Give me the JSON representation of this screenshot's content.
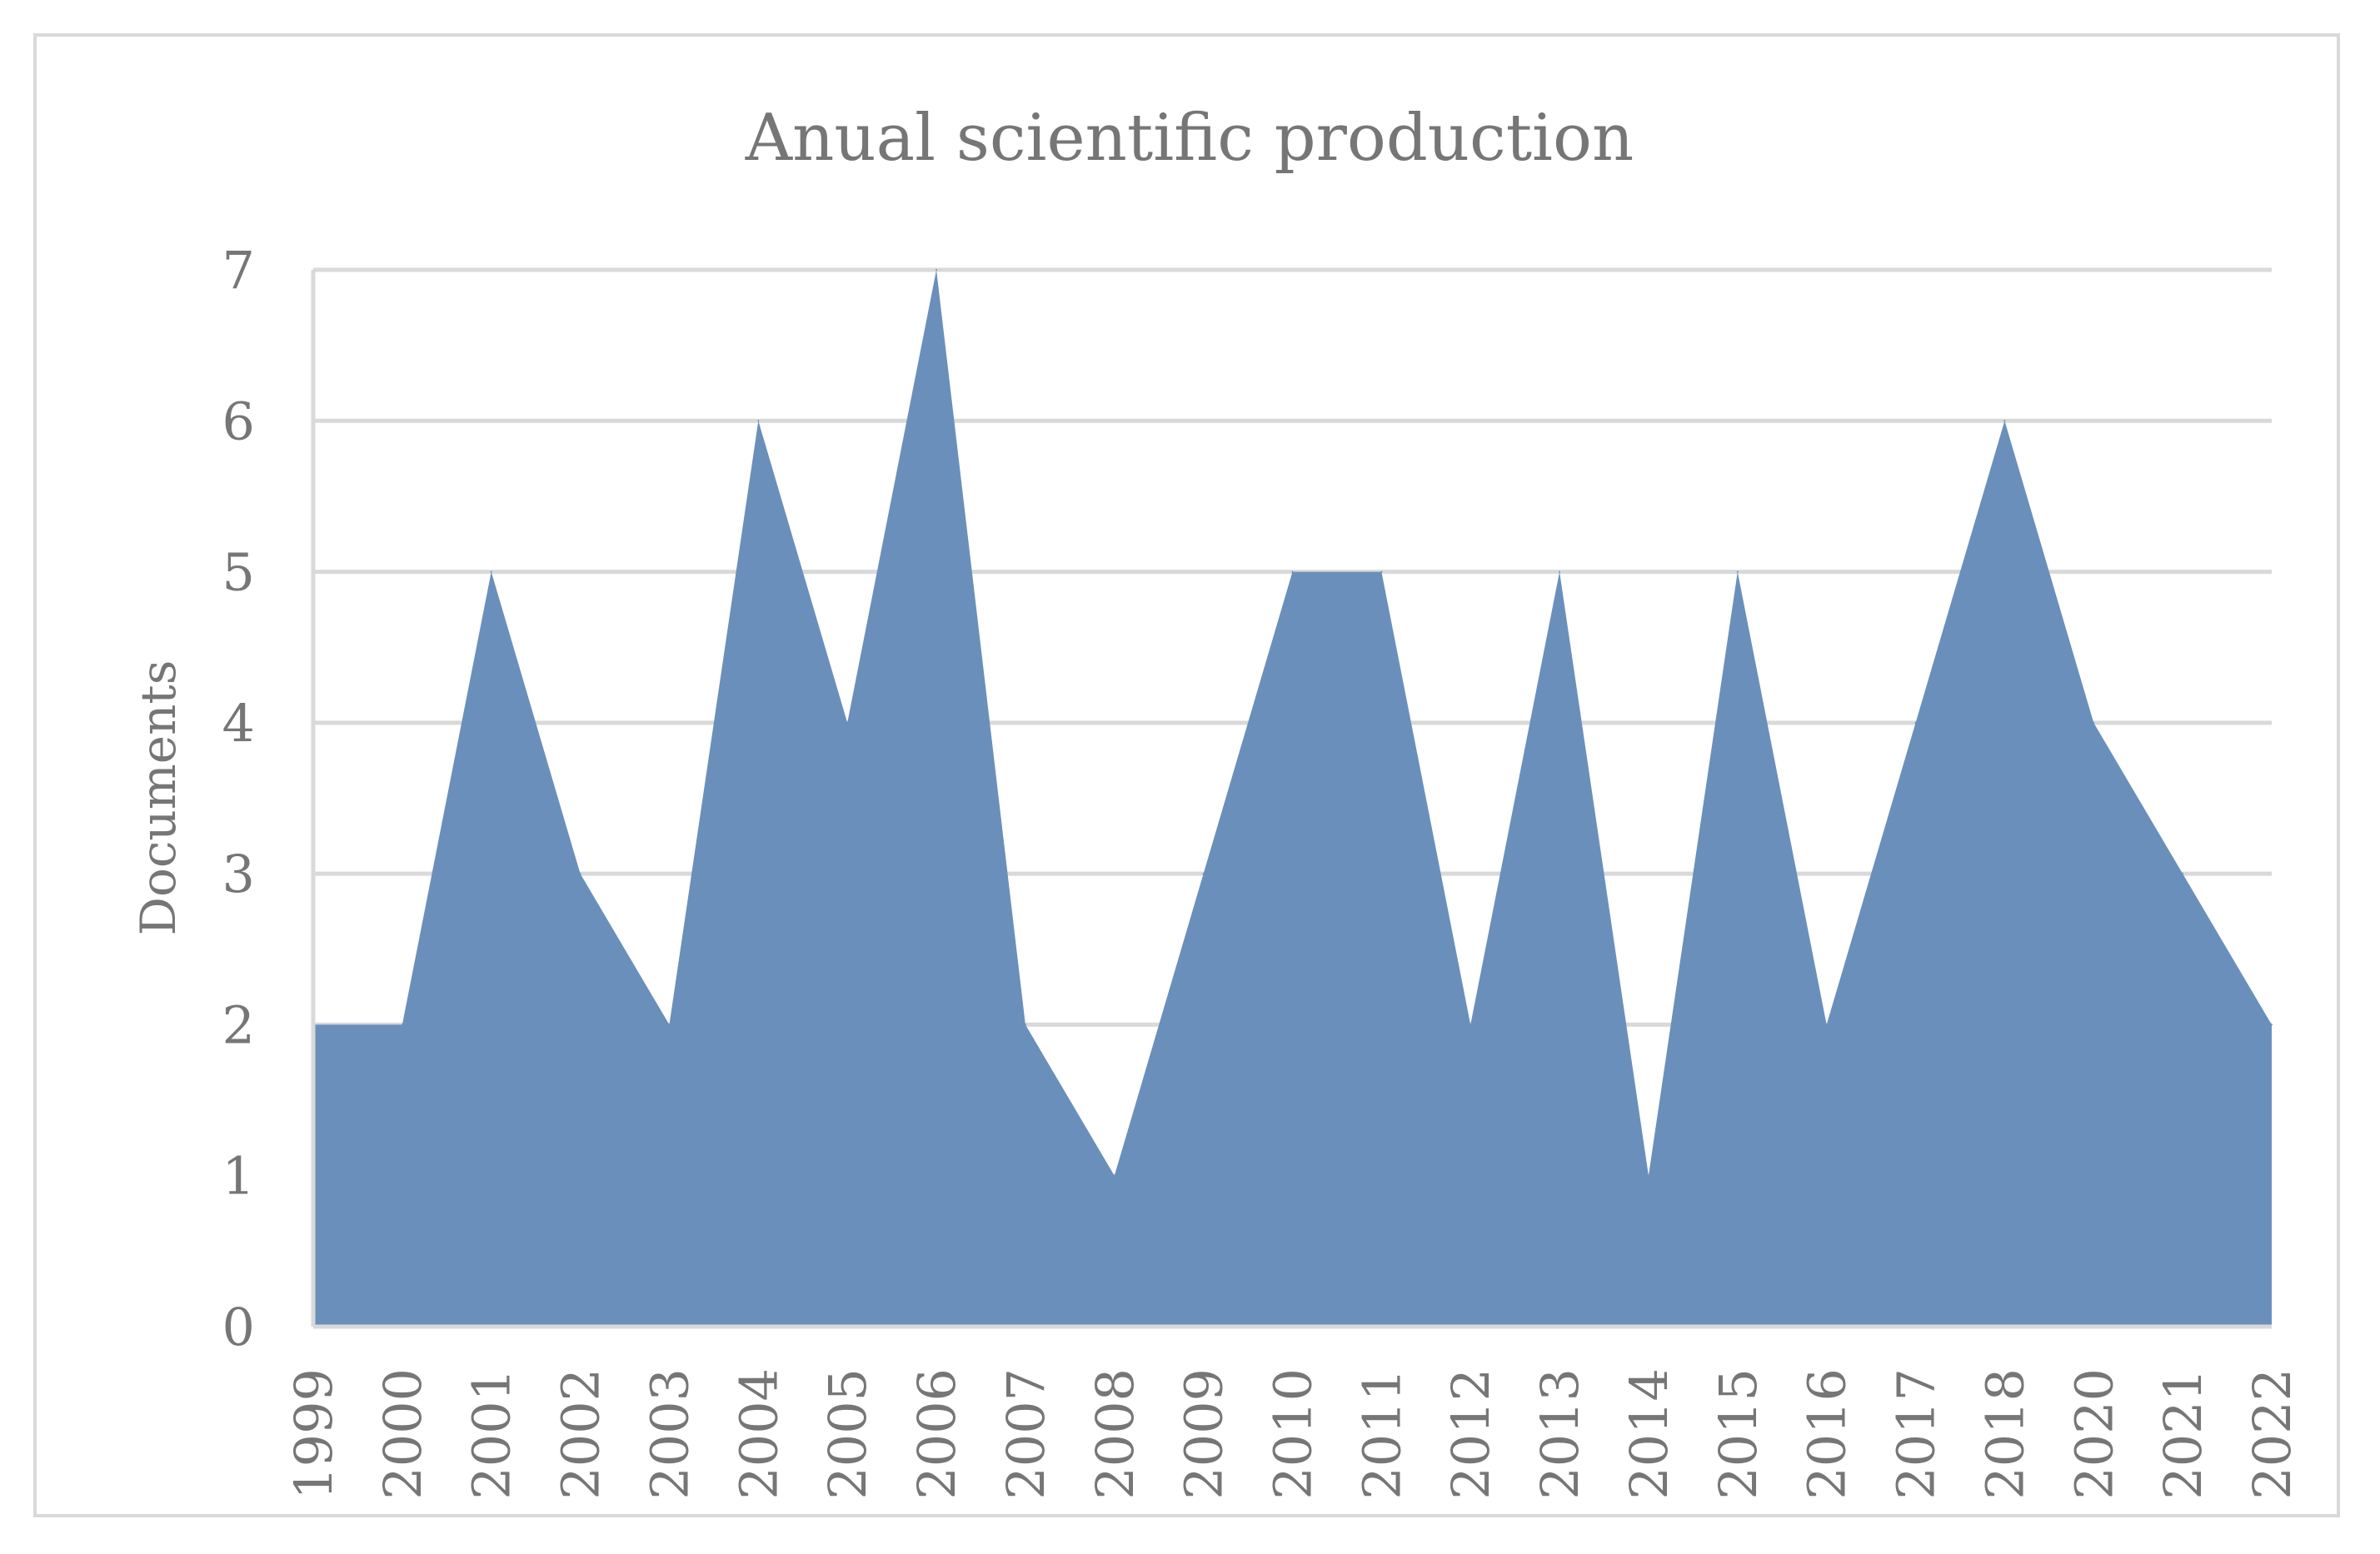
{
  "chart_data": {
    "type": "area",
    "title": "Anual scientific production",
    "xlabel": "",
    "ylabel": "Documents",
    "categories": [
      "1999",
      "2000",
      "2001",
      "2002",
      "2003",
      "2004",
      "2005",
      "2006",
      "2007",
      "2008",
      "2009",
      "2010",
      "2011",
      "2012",
      "2013",
      "2014",
      "2015",
      "2016",
      "2017",
      "2018",
      "2020",
      "2021",
      "2022"
    ],
    "series": [
      {
        "values": [
          2,
          2,
          5,
          3,
          2,
          6,
          4,
          7,
          2,
          1,
          3,
          5,
          5,
          2,
          5,
          1,
          5,
          2,
          4,
          6,
          4,
          3,
          2
        ]
      }
    ],
    "ylim": [
      0,
      7
    ],
    "yticks": [
      0,
      1,
      2,
      3,
      4,
      5,
      6,
      7
    ],
    "grid": true,
    "legend": "none",
    "colors": {
      "area": "#6a8fbb",
      "grid": "#d9d9d9",
      "text": "#767676"
    }
  }
}
